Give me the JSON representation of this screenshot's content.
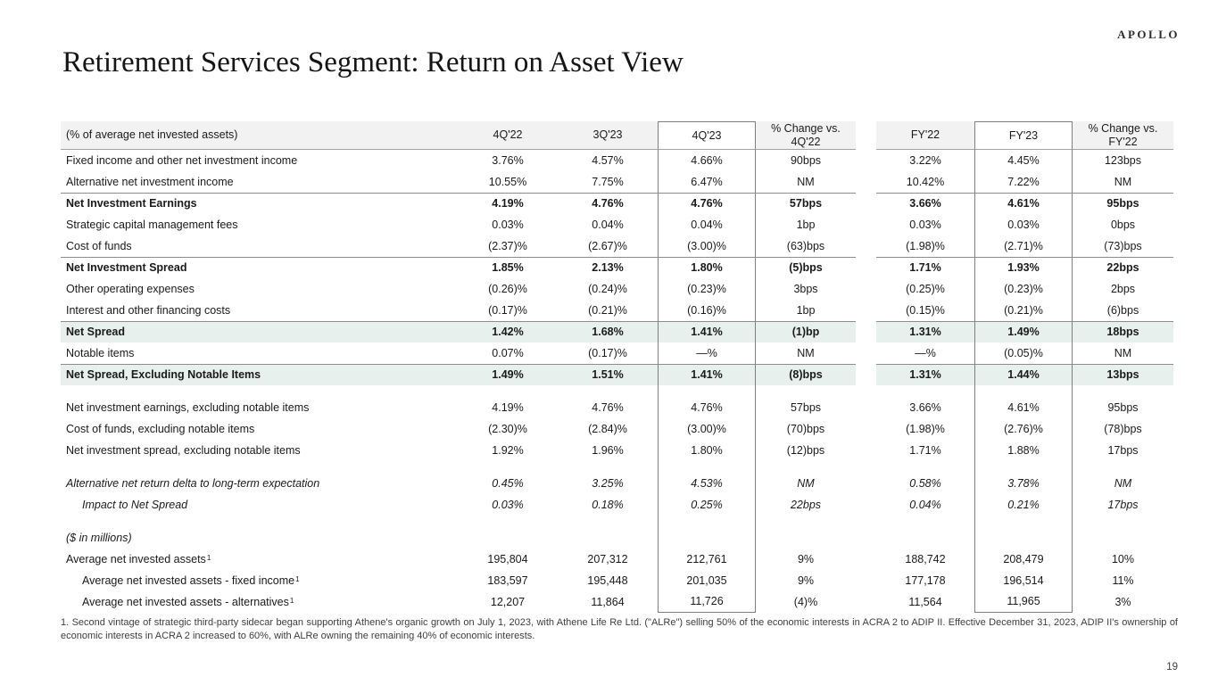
{
  "logo": "APOLLO",
  "page_title": "Retirement Services Segment: Return on Asset View",
  "page_number": "19",
  "colors": {
    "highlight_row": "#e7f0ec",
    "header_bg": "#f2f2f2",
    "box_border": "#7f7f7f",
    "rule_line": "#8c8c8c"
  },
  "table": {
    "header": {
      "label": "(% of average net invested assets)",
      "columns": [
        "4Q'22",
        "3Q'23",
        "4Q'23",
        "% Change vs. 4Q'22",
        "FY'22",
        "FY'23",
        "% Change vs. FY'22"
      ]
    },
    "rows": [
      {
        "label": "Fixed income and other net investment income",
        "style": "normal",
        "values": [
          "3.76%",
          "4.57%",
          "4.66%",
          "90bps",
          "3.22%",
          "4.45%",
          "123bps"
        ]
      },
      {
        "label": "Alternative net investment income",
        "style": "normal",
        "values": [
          "10.55%",
          "7.75%",
          "6.47%",
          "NM",
          "10.42%",
          "7.22%",
          "NM"
        ]
      },
      {
        "label": "Net Investment Earnings",
        "style": "bold",
        "topline": true,
        "values": [
          "4.19%",
          "4.76%",
          "4.76%",
          "57bps",
          "3.66%",
          "4.61%",
          "95bps"
        ]
      },
      {
        "label": "Strategic capital management fees",
        "style": "normal",
        "values": [
          "0.03%",
          "0.04%",
          "0.04%",
          "1bp",
          "0.03%",
          "0.03%",
          "0bps"
        ]
      },
      {
        "label": "Cost of funds",
        "style": "normal",
        "values": [
          "(2.37)%",
          "(2.67)%",
          "(3.00)%",
          "(63)bps",
          "(1.98)%",
          "(2.71)%",
          "(73)bps"
        ]
      },
      {
        "label": "Net Investment Spread",
        "style": "bold",
        "topline": true,
        "values": [
          "1.85%",
          "2.13%",
          "1.80%",
          "(5)bps",
          "1.71%",
          "1.93%",
          "22bps"
        ]
      },
      {
        "label": "Other operating expenses",
        "style": "normal",
        "values": [
          "(0.26)%",
          "(0.24)%",
          "(0.23)%",
          "3bps",
          "(0.25)%",
          "(0.23)%",
          "2bps"
        ]
      },
      {
        "label": "Interest and other financing costs",
        "style": "normal",
        "values": [
          "(0.17)%",
          "(0.21)%",
          "(0.16)%",
          "1bp",
          "(0.15)%",
          "(0.21)%",
          "(6)bps"
        ]
      },
      {
        "label": "Net Spread",
        "style": "bold",
        "topline": true,
        "highlight": true,
        "values": [
          "1.42%",
          "1.68%",
          "1.41%",
          "(1)bp",
          "1.31%",
          "1.49%",
          "18bps"
        ]
      },
      {
        "label": "Notable items",
        "style": "normal",
        "values": [
          "0.07%",
          "(0.17)%",
          "—%",
          "NM",
          "—%",
          "(0.05)%",
          "NM"
        ]
      },
      {
        "label": "Net Spread, Excluding Notable Items",
        "style": "bold",
        "topline": true,
        "highlight": true,
        "values": [
          "1.49%",
          "1.51%",
          "1.41%",
          "(8)bps",
          "1.31%",
          "1.44%",
          "13bps"
        ]
      },
      {
        "spacer": true
      },
      {
        "label": "Net investment earnings, excluding notable items",
        "style": "normal",
        "values": [
          "4.19%",
          "4.76%",
          "4.76%",
          "57bps",
          "3.66%",
          "4.61%",
          "95bps"
        ]
      },
      {
        "label": "Cost of funds, excluding notable items",
        "style": "normal",
        "values": [
          "(2.30)%",
          "(2.84)%",
          "(3.00)%",
          "(70)bps",
          "(1.98)%",
          "(2.76)%",
          "(78)bps"
        ]
      },
      {
        "label": "Net investment spread, excluding notable items",
        "style": "normal",
        "values": [
          "1.92%",
          "1.96%",
          "1.80%",
          "(12)bps",
          "1.71%",
          "1.88%",
          "17bps"
        ]
      },
      {
        "spacer": true
      },
      {
        "label": "Alternative net return delta to long-term expectation",
        "style": "italic",
        "values": [
          "0.45%",
          "3.25%",
          "4.53%",
          "NM",
          "0.58%",
          "3.78%",
          "NM"
        ]
      },
      {
        "label": "Impact to Net Spread",
        "style": "italic",
        "indent": true,
        "values": [
          "0.03%",
          "0.18%",
          "0.25%",
          "22bps",
          "0.04%",
          "0.21%",
          "17bps"
        ]
      },
      {
        "spacer": true
      },
      {
        "label": "($ in millions)",
        "style": "italic",
        "values": [
          "",
          "",
          "",
          "",
          "",
          "",
          ""
        ]
      },
      {
        "label": "Average net invested assets",
        "sup": "1",
        "style": "normal",
        "values": [
          "195,804",
          "207,312",
          "212,761",
          "9%",
          "188,742",
          "208,479",
          "10%"
        ]
      },
      {
        "label": "Average net invested assets - fixed income",
        "sup": "1",
        "style": "normal",
        "indent": true,
        "values": [
          "183,597",
          "195,448",
          "201,035",
          "9%",
          "177,178",
          "196,514",
          "11%"
        ]
      },
      {
        "label": "Average net invested assets - alternatives",
        "sup": "1",
        "style": "normal",
        "indent": true,
        "last": true,
        "values": [
          "12,207",
          "11,864",
          "11,726",
          "(4)%",
          "11,564",
          "11,965",
          "3%"
        ]
      }
    ]
  },
  "footnote": "1. Second vintage of strategic third-party sidecar began supporting Athene's organic growth on July 1, 2023, with Athene Life Re Ltd. (\"ALRe\") selling 50% of the economic interests in ACRA 2 to ADIP II. Effective December 31, 2023, ADIP II's ownership of economic interests in ACRA 2 increased to 60%, with ALRe owning the remaining 40% of economic interests."
}
